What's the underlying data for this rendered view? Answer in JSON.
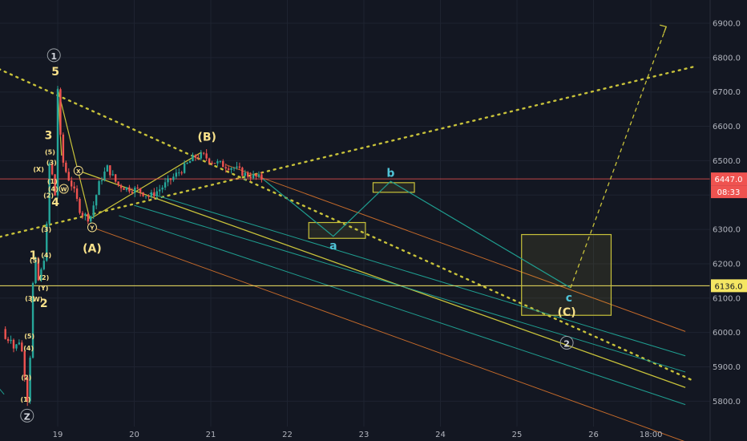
{
  "chart_data": {
    "type": "line",
    "colors": {
      "background": "#131722",
      "grid": "#1e2330",
      "up_candle": "#26a69a",
      "down_candle": "#ef5350",
      "wave_label": "#f7e08a",
      "corrective_label": "#4fc3d7",
      "channel_yellow": "#c8c23a",
      "channel_orange": "#c46a2a",
      "channel_teal": "#1f9e90",
      "price_tag": "#ef5350",
      "level_tag": "#f5e663"
    },
    "x_ticks": [
      "19",
      "20",
      "21",
      "22",
      "23",
      "24",
      "25",
      "26",
      "18:00"
    ],
    "y_ticks": [
      "6900.0",
      "6800.0",
      "6700.0",
      "6600.0",
      "6500.0",
      "6400.0",
      "6300.0",
      "6200.0",
      "6100.0",
      "6000.0",
      "5900.0",
      "5800.0"
    ],
    "ylim": [
      5720,
      6960
    ],
    "last_price": "6447.0",
    "countdown": "08:33",
    "level_price": "6136.0",
    "level_value": 6136,
    "last_value": 6447,
    "wave_labels": [
      {
        "text": "1",
        "t": 18.95,
        "p": 6807,
        "circle": true,
        "color": "wave_label"
      },
      {
        "text": "5",
        "t": 18.97,
        "p": 6760,
        "circle": false,
        "color": "wave_label"
      },
      {
        "text": "3",
        "t": 18.88,
        "p": 6575,
        "circle": false,
        "color": "wave_label"
      },
      {
        "text": "4",
        "t": 18.97,
        "p": 6380,
        "circle": false,
        "color": "wave_label"
      },
      {
        "text": "1",
        "t": 18.68,
        "p": 6225,
        "circle": false,
        "color": "wave_label"
      },
      {
        "text": "2",
        "t": 18.82,
        "p": 6085,
        "circle": false,
        "color": "wave_label"
      },
      {
        "text": "(A)",
        "t": 19.45,
        "p": 6245,
        "circle": false,
        "color": "wave_label"
      },
      {
        "text": "(B)",
        "t": 20.95,
        "p": 6570,
        "circle": false,
        "color": "wave_label"
      },
      {
        "text": "(C)",
        "t": 25.65,
        "p": 6060,
        "circle": false,
        "color": "wave_label"
      },
      {
        "text": "2",
        "t": 25.65,
        "p": 5970,
        "circle": true,
        "color": "wave_label"
      },
      {
        "text": "Z",
        "t": 18.6,
        "p": 5758,
        "circle": true,
        "color": "wave_label"
      },
      {
        "text": "a",
        "t": 22.6,
        "p": 6253,
        "circle": false,
        "color": "corrective_label"
      },
      {
        "text": "b",
        "t": 23.35,
        "p": 6465,
        "circle": false,
        "color": "corrective_label"
      },
      {
        "text": "c",
        "t": 25.68,
        "p": 6102,
        "circle": false,
        "color": "corrective_label"
      }
    ],
    "small_labels": [
      {
        "text": "(X)",
        "t": 18.75,
        "p": 6475
      },
      {
        "text": "(5)",
        "t": 18.9,
        "p": 6525
      },
      {
        "text": "(3)",
        "t": 18.92,
        "p": 6495
      },
      {
        "text": "(1)",
        "t": 18.93,
        "p": 6440
      },
      {
        "text": "(4)",
        "t": 18.94,
        "p": 6418
      },
      {
        "text": "(2)",
        "t": 18.88,
        "p": 6400
      },
      {
        "text": "(3)",
        "t": 18.85,
        "p": 6300
      },
      {
        "text": "(5)",
        "t": 18.7,
        "p": 6210
      },
      {
        "text": "(4)",
        "t": 18.85,
        "p": 6225
      },
      {
        "text": "(2)",
        "t": 18.82,
        "p": 6160
      },
      {
        "text": "(Y)",
        "t": 18.81,
        "p": 6130
      },
      {
        "text": "(3)",
        "t": 18.64,
        "p": 6100
      },
      {
        "text": "(W)",
        "t": 18.72,
        "p": 6097
      },
      {
        "text": "(5)",
        "t": 18.63,
        "p": 5990
      },
      {
        "text": "(4)",
        "t": 18.62,
        "p": 5955
      },
      {
        "text": "(2)",
        "t": 18.59,
        "p": 5870
      },
      {
        "text": "(1)",
        "t": 18.58,
        "p": 5805
      }
    ],
    "circle_labels": [
      {
        "text": "X",
        "t": 19.27,
        "p": 6471
      },
      {
        "text": "W",
        "t": 19.08,
        "p": 6418
      },
      {
        "text": "Y",
        "t": 19.45,
        "p": 6306
      }
    ],
    "price_path": [
      [
        18.28,
        6010
      ],
      [
        18.33,
        5970
      ],
      [
        18.38,
        5995
      ],
      [
        18.43,
        5950
      ],
      [
        18.5,
        5978
      ],
      [
        18.55,
        5925
      ],
      [
        18.6,
        5800
      ],
      [
        18.63,
        5860
      ],
      [
        18.66,
        6080
      ],
      [
        18.7,
        6230
      ],
      [
        18.74,
        6145
      ],
      [
        18.8,
        6190
      ],
      [
        18.85,
        6260
      ],
      [
        18.88,
        6500
      ],
      [
        18.93,
        6455
      ],
      [
        18.97,
        6390
      ],
      [
        19.0,
        6710
      ],
      [
        19.05,
        6510
      ],
      [
        19.12,
        6460
      ],
      [
        19.2,
        6420
      ],
      [
        19.3,
        6350
      ],
      [
        19.42,
        6330
      ],
      [
        19.55,
        6440
      ],
      [
        19.65,
        6480
      ],
      [
        19.78,
        6430
      ],
      [
        19.9,
        6420
      ],
      [
        20.05,
        6415
      ],
      [
        20.2,
        6395
      ],
      [
        20.35,
        6420
      ],
      [
        20.5,
        6450
      ],
      [
        20.65,
        6480
      ],
      [
        20.78,
        6510
      ],
      [
        20.9,
        6515
      ],
      [
        21.0,
        6500
      ],
      [
        21.15,
        6488
      ],
      [
        21.3,
        6480
      ],
      [
        21.45,
        6460
      ],
      [
        21.55,
        6455
      ],
      [
        21.68,
        6447
      ]
    ],
    "projection": [
      [
        21.68,
        6447
      ],
      [
        22.6,
        6280
      ],
      [
        23.35,
        6440
      ],
      [
        25.7,
        6130
      ]
    ],
    "projection_up": [
      [
        25.7,
        6130
      ],
      [
        26.95,
        6890
      ]
    ],
    "boxes": [
      {
        "t1": 22.28,
        "p1": 6274,
        "t2": 23.02,
        "p2": 6320
      },
      {
        "t1": 23.12,
        "p1": 6408,
        "t2": 23.66,
        "p2": 6436
      },
      {
        "t1": 25.06,
        "p1": 6050,
        "t2": 26.23,
        "p2": 6285
      }
    ],
    "lines": [
      {
        "points": [
          [
            18.0,
            6790
          ],
          [
            27.3,
            5860
          ]
        ],
        "color": "channel_yellow",
        "dash": "2 6",
        "width": 2.4
      },
      {
        "points": [
          [
            18.0,
            6265
          ],
          [
            27.3,
            6773
          ]
        ],
        "color": "channel_yellow",
        "dash": "2 6",
        "width": 2.4
      },
      {
        "points": [
          [
            19.0,
            6710
          ],
          [
            19.42,
            6330
          ]
        ],
        "color": "channel_yellow",
        "dash": "",
        "width": 1.2
      },
      {
        "points": [
          [
            19.42,
            6330
          ],
          [
            20.88,
            6525
          ]
        ],
        "color": "channel_yellow",
        "dash": "",
        "width": 1.2
      },
      {
        "points": [
          [
            19.0,
            6710
          ],
          [
            19.05,
            6515
          ]
        ],
        "color": "channel_yellow",
        "dash": "",
        "width": 1.2
      },
      {
        "points": [
          [
            19.27,
            6471
          ],
          [
            27.2,
            5840
          ]
        ],
        "color": "channel_yellow",
        "dash": "",
        "width": 1.3
      },
      {
        "points": [
          [
            21.2,
            6488
          ],
          [
            27.2,
            6003
          ]
        ],
        "color": "channel_orange",
        "dash": "",
        "width": 1
      },
      {
        "points": [
          [
            19.4,
            6310
          ],
          [
            27.2,
            5682
          ]
        ],
        "color": "channel_orange",
        "dash": "",
        "width": 1
      },
      {
        "points": [
          [
            20.2,
            6405
          ],
          [
            27.2,
            5932
          ]
        ],
        "color": "channel_teal",
        "dash": "",
        "width": 1
      },
      {
        "points": [
          [
            20.0,
            6370
          ],
          [
            27.2,
            5885
          ]
        ],
        "color": "channel_teal",
        "dash": "",
        "width": 1
      },
      {
        "points": [
          [
            19.8,
            6340
          ],
          [
            27.2,
            5790
          ]
        ],
        "color": "channel_teal",
        "dash": "",
        "width": 1
      },
      {
        "points": [
          [
            18.0,
            5900
          ],
          [
            18.3,
            5820
          ]
        ],
        "color": "channel_teal",
        "dash": "",
        "width": 1
      }
    ]
  }
}
